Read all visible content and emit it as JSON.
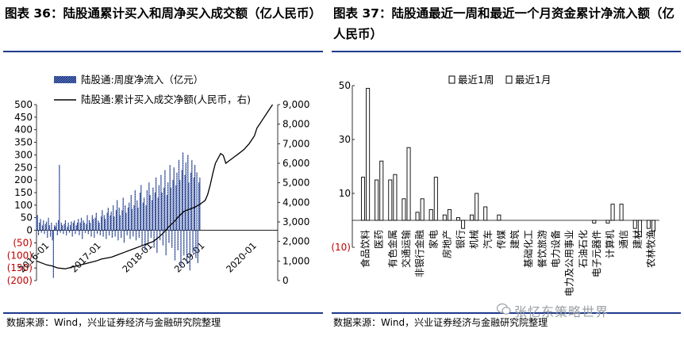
{
  "left": {
    "title": "图表 36：陆股通累计买入和周净买入成交额（亿人民币）",
    "source": "数据来源：Wind，兴业证券经济与金融研究院整理",
    "chart_data": {
      "type": "bar+line",
      "legend": [
        "陆股通:周度净流入（亿元）",
        "陆股通:累计买入成交净额(人民币，右)"
      ],
      "legend_placement": "top",
      "y_left": {
        "range": [
          -200,
          500
        ],
        "ticks": [
          "500",
          "450",
          "400",
          "350",
          "300",
          "250",
          "200",
          "150",
          "100",
          "50",
          "0",
          "(50)",
          "(100)",
          "(150)",
          "(200)"
        ],
        "negative_color": "#c00000"
      },
      "y_right": {
        "range": [
          0,
          9000
        ],
        "ticks": [
          "9,000",
          "8,000",
          "7,000",
          "6,000",
          "5,000",
          "4,000",
          "3,000",
          "2,000",
          "1,000",
          "0"
        ]
      },
      "x_ticks": [
        "2016-01",
        "2017-01",
        "2018-01",
        "2019-01",
        "2020-01"
      ],
      "x_range": [
        2015.75,
        2020.4
      ],
      "series": [
        {
          "name": "陆股通:累计买入成交净额(人民币，右)",
          "type": "line",
          "axis": "right",
          "x": [
            2015.75,
            2015.85,
            2015.95,
            2016.05,
            2016.15,
            2016.3,
            2016.45,
            2016.6,
            2016.75,
            2016.9,
            2017.0,
            2017.1,
            2017.2,
            2017.3,
            2017.45,
            2017.6,
            2017.75,
            2017.9,
            2018.0,
            2018.1,
            2018.2,
            2018.3,
            2018.4,
            2018.5,
            2018.6,
            2018.7,
            2018.8,
            2018.9,
            2019.0,
            2019.05,
            2019.1,
            2019.15,
            2019.2,
            2019.3,
            2019.35,
            2019.4,
            2019.45,
            2019.55,
            2019.65,
            2019.75,
            2019.85,
            2019.95,
            2020.0,
            2020.05,
            2020.1,
            2020.15,
            2020.2,
            2020.25,
            2020.3
          ],
          "y": [
            1000,
            900,
            800,
            750,
            650,
            600,
            700,
            800,
            900,
            1000,
            1100,
            1150,
            1200,
            1300,
            1450,
            1600,
            1750,
            1900,
            2000,
            2200,
            2450,
            2750,
            3000,
            3300,
            3550,
            3650,
            3750,
            3900,
            4100,
            4400,
            4900,
            5500,
            6000,
            6500,
            6400,
            6000,
            6100,
            6300,
            6500,
            6700,
            7000,
            7400,
            7800,
            8000,
            8200,
            8400,
            8600,
            8800,
            9000
          ]
        },
        {
          "name": "陆股通:周度净流入（亿元）",
          "type": "bar",
          "axis": "left",
          "x_start": 2015.75,
          "step": 0.0192,
          "values": [
            55,
            60,
            -20,
            30,
            45,
            -10,
            20,
            40,
            -15,
            25,
            35,
            -30,
            50,
            20,
            -25,
            30,
            -40,
            -190,
            20,
            15,
            30,
            -20,
            40,
            260,
            -10,
            30,
            20,
            -15,
            25,
            40,
            -20,
            15,
            30,
            -10,
            20,
            35,
            -25,
            30,
            40,
            -15,
            20,
            30,
            45,
            -20,
            30,
            50,
            -35,
            40,
            30,
            -10,
            25,
            60,
            -15,
            40,
            30,
            -25,
            60,
            45,
            -30,
            50,
            70,
            -15,
            40,
            30,
            -20,
            55,
            80,
            -25,
            60,
            45,
            -35,
            70,
            90,
            -20,
            60,
            75,
            -30,
            100,
            55,
            -25,
            80,
            120,
            -40,
            90,
            60,
            -30,
            80,
            130,
            -50,
            100,
            70,
            -20,
            90,
            110,
            -35,
            140,
            85,
            -25,
            100,
            160,
            -40,
            120,
            90,
            -30,
            150,
            180,
            -60,
            110,
            130,
            -80,
            100,
            160,
            -50,
            190,
            140,
            -30,
            120,
            170,
            -70,
            150,
            210,
            -90,
            130,
            180,
            -40,
            220,
            150,
            -60,
            170,
            240,
            -100,
            140,
            190,
            -50,
            260,
            170,
            -70,
            200,
            250,
            -120,
            180,
            230,
            -80,
            280,
            200,
            -150,
            240,
            310,
            -100,
            220,
            270,
            -130,
            300,
            190,
            -160,
            230,
            280,
            -90,
            210,
            260,
            -110,
            230,
            -130,
            190,
            210
          ]
        }
      ]
    }
  },
  "right": {
    "title": "图表 37：陆股通最近一周和最近一个月资金累计净流入额（亿人民币）",
    "source": "数据来源：Wind，兴业证券经济与金融研究院整理",
    "chart_data": {
      "type": "bar",
      "legend": [
        "最近1周",
        "最近1月"
      ],
      "legend_placement": "top",
      "y_axis": {
        "range": [
          -10,
          50
        ],
        "ticks": [
          "50",
          "30",
          "10",
          "(10)"
        ],
        "negative_color": "#c00000"
      },
      "categories": [
        "食品饮料",
        "医药",
        "有色金属",
        "交通运输",
        "非银行金融",
        "家电",
        "房地产",
        "银行",
        "机械",
        "汽车",
        "传媒",
        "建筑",
        "基础化工",
        "餐饮旅游",
        "电力设备",
        "电力及公用事业",
        "石油石化",
        "电子元器件",
        "计算机",
        "通信",
        "建材",
        "农林牧渔"
      ],
      "series": [
        {
          "name": "最近1周",
          "values": [
            16,
            15,
            15,
            8,
            3,
            4,
            2,
            1,
            2,
            5,
            2,
            0,
            0,
            0,
            0,
            0,
            0,
            -1,
            -1,
            6,
            -3,
            -3
          ]
        },
        {
          "name": "最近1月",
          "values": [
            49,
            22,
            17,
            27,
            8,
            16,
            4,
            -3,
            10,
            0,
            0,
            0,
            0,
            0,
            0,
            0,
            0,
            0,
            6,
            0,
            -6,
            -4
          ]
        }
      ]
    }
  },
  "watermark": "张忆东策略世界"
}
